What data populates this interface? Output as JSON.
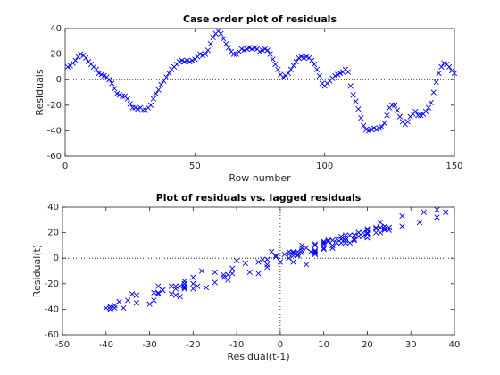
{
  "chart_data": [
    {
      "type": "scatter",
      "title": "Case order plot of residuals",
      "xlabel": "Row number",
      "ylabel": "Residuals",
      "marker": "x",
      "color": "#0000ff",
      "hline": 0,
      "x": [
        1,
        2,
        3,
        4,
        5,
        6,
        7,
        8,
        9,
        10,
        11,
        12,
        13,
        14,
        15,
        16,
        17,
        18,
        19,
        20,
        21,
        22,
        23,
        24,
        25,
        26,
        27,
        28,
        29,
        30,
        31,
        32,
        33,
        34,
        35,
        36,
        37,
        38,
        39,
        40,
        41,
        42,
        43,
        44,
        45,
        46,
        47,
        48,
        49,
        50,
        51,
        52,
        53,
        54,
        55,
        56,
        57,
        58,
        59,
        60,
        61,
        62,
        63,
        64,
        65,
        66,
        67,
        68,
        69,
        70,
        71,
        72,
        73,
        74,
        75,
        76,
        77,
        78,
        79,
        80,
        81,
        82,
        83,
        84,
        85,
        86,
        87,
        88,
        89,
        90,
        91,
        92,
        93,
        94,
        95,
        96,
        97,
        98,
        99,
        100,
        101,
        102,
        103,
        104,
        105,
        106,
        107,
        108,
        109,
        110,
        111,
        112,
        113,
        114,
        115,
        116,
        117,
        118,
        119,
        120,
        121,
        122,
        123,
        124,
        125,
        126,
        127,
        128,
        129,
        130,
        131,
        132,
        133,
        134,
        135,
        136,
        137,
        138,
        139,
        140,
        141,
        142,
        143,
        144,
        145,
        146,
        147,
        148,
        149,
        150
      ],
      "y": [
        10,
        11,
        13,
        15,
        18,
        20,
        19,
        17,
        14,
        12,
        10,
        8,
        5,
        4,
        3,
        2,
        0,
        -3,
        -7,
        -11,
        -12,
        -13,
        -13,
        -15,
        -19,
        -22,
        -22,
        -23,
        -22,
        -24,
        -24,
        -22,
        -20,
        -15,
        -11,
        -8,
        -4,
        -1,
        2,
        5,
        8,
        10,
        12,
        14,
        15,
        14,
        15,
        14,
        15,
        16,
        18,
        20,
        19,
        20,
        23,
        28,
        33,
        36,
        38,
        36,
        32,
        28,
        25,
        22,
        20,
        20,
        22,
        24,
        23,
        24,
        25,
        24,
        25,
        24,
        22,
        23,
        24,
        23,
        20,
        16,
        12,
        8,
        4,
        2,
        3,
        5,
        8,
        11,
        14,
        17,
        18,
        17,
        18,
        17,
        15,
        12,
        8,
        3,
        -3,
        -5,
        -3,
        -1,
        1,
        3,
        4,
        5,
        6,
        8,
        6,
        -5,
        -12,
        -17,
        -23,
        -30,
        -36,
        -39,
        -40,
        -39,
        -38,
        -39,
        -38,
        -37,
        -34,
        -28,
        -22,
        -20,
        -20,
        -24,
        -29,
        -33,
        -35,
        -33,
        -29,
        -27,
        -25,
        -28,
        -28,
        -27,
        -25,
        -22,
        -18,
        -10,
        -2,
        5,
        10,
        13,
        12,
        10,
        7,
        5
      ],
      "xlim": [
        0,
        150
      ],
      "xticks": [
        0,
        50,
        100,
        150
      ],
      "ylim": [
        -60,
        40
      ],
      "yticks": [
        -60,
        -40,
        -20,
        0,
        20,
        40
      ]
    },
    {
      "type": "scatter",
      "title": "Plot of residuals vs. lagged residuals",
      "xlabel": "Residual(t-1)",
      "ylabel": "Residual(t)",
      "marker": "x",
      "color": "#0000ff",
      "hline": 0,
      "vline": 0,
      "x": [
        10,
        11,
        13,
        15,
        18,
        20,
        19,
        17,
        14,
        12,
        10,
        8,
        5,
        4,
        3,
        2,
        0,
        -3,
        -7,
        -11,
        -12,
        -13,
        -13,
        -15,
        -19,
        -22,
        -22,
        -23,
        -22,
        -24,
        -24,
        -22,
        -20,
        -15,
        -11,
        -8,
        -4,
        -1,
        2,
        5,
        8,
        10,
        12,
        14,
        15,
        14,
        15,
        14,
        15,
        16,
        18,
        20,
        19,
        20,
        23,
        28,
        33,
        36,
        38,
        36,
        32,
        28,
        25,
        22,
        20,
        20,
        22,
        24,
        23,
        24,
        25,
        24,
        25,
        24,
        22,
        23,
        24,
        23,
        20,
        16,
        12,
        8,
        4,
        2,
        3,
        5,
        8,
        11,
        14,
        17,
        18,
        17,
        18,
        17,
        15,
        12,
        8,
        3,
        -3,
        -5,
        -3,
        -1,
        1,
        3,
        4,
        5,
        6,
        8,
        6,
        -5,
        -12,
        -17,
        -23,
        -30,
        -36,
        -39,
        -40,
        -39,
        -38,
        -39,
        -38,
        -37,
        -34,
        -28,
        -22,
        -20,
        -20,
        -24,
        -29,
        -33,
        -35,
        -33,
        -29,
        -27,
        -25,
        -28,
        -28,
        -27,
        -25,
        -22,
        -18,
        -10,
        -2,
        5,
        10,
        13,
        12,
        10,
        7
      ],
      "y": [
        11,
        13,
        15,
        18,
        20,
        19,
        17,
        14,
        12,
        10,
        8,
        5,
        4,
        3,
        2,
        0,
        -3,
        -7,
        -11,
        -12,
        -13,
        -13,
        -15,
        -19,
        -22,
        -22,
        -23,
        -22,
        -24,
        -24,
        -22,
        -20,
        -15,
        -11,
        -8,
        -4,
        -1,
        2,
        5,
        8,
        10,
        12,
        14,
        15,
        14,
        15,
        14,
        15,
        16,
        18,
        20,
        19,
        20,
        23,
        28,
        33,
        36,
        38,
        36,
        32,
        28,
        25,
        22,
        20,
        20,
        22,
        24,
        23,
        24,
        25,
        24,
        25,
        24,
        22,
        23,
        24,
        23,
        20,
        16,
        12,
        8,
        4,
        2,
        3,
        5,
        8,
        11,
        14,
        17,
        18,
        17,
        18,
        17,
        15,
        12,
        8,
        3,
        -3,
        -5,
        -3,
        -1,
        1,
        3,
        4,
        5,
        6,
        8,
        6,
        -5,
        -12,
        -17,
        -23,
        -30,
        -36,
        -39,
        -40,
        -39,
        -38,
        -39,
        -38,
        -37,
        -34,
        -28,
        -22,
        -20,
        -20,
        -24,
        -29,
        -33,
        -35,
        -33,
        -29,
        -27,
        -25,
        -28,
        -28,
        -27,
        -25,
        -22,
        -18,
        -10,
        -2,
        5,
        10,
        13,
        12,
        10,
        7,
        5
      ],
      "xlim": [
        -50,
        40
      ],
      "xticks": [
        -50,
        -40,
        -30,
        -20,
        -10,
        0,
        10,
        20,
        30,
        40
      ],
      "ylim": [
        -60,
        40
      ],
      "yticks": [
        -60,
        -40,
        -20,
        0,
        20,
        40
      ]
    }
  ]
}
